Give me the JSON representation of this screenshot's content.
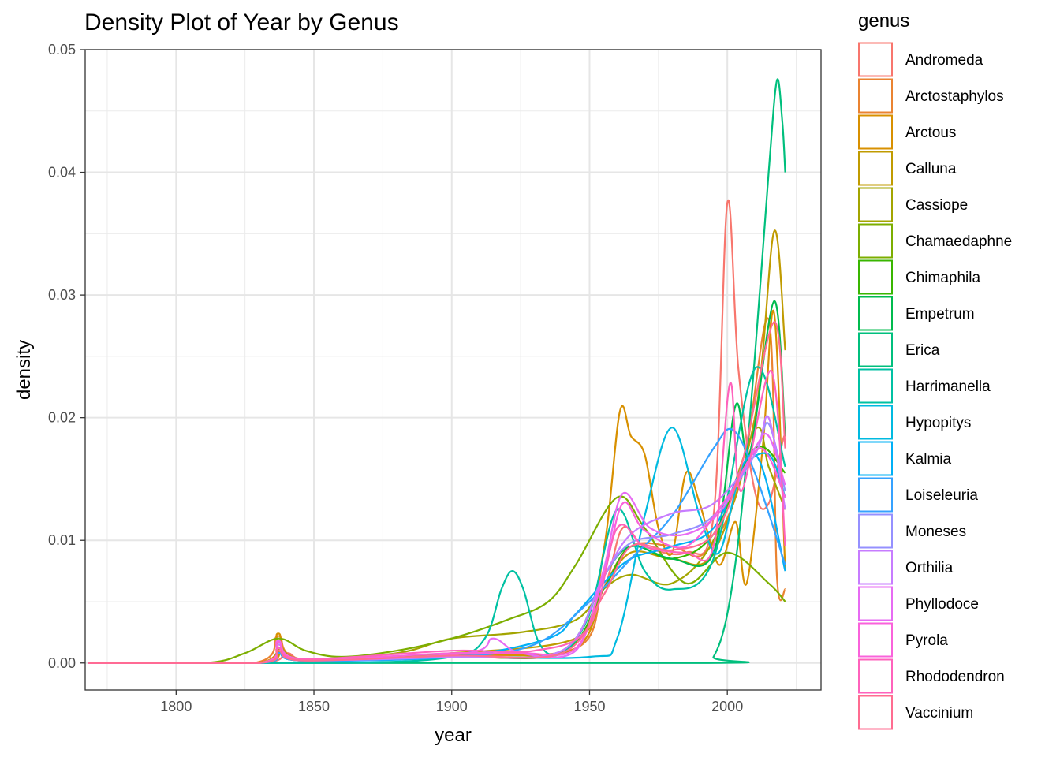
{
  "chart_data": {
    "type": "line",
    "title": "Density Plot of Year by Genus",
    "xlabel": "year",
    "ylabel": "density",
    "xlim": [
      1767,
      2034
    ],
    "ylim": [
      -0.0022,
      0.05
    ],
    "xticks": [
      1800,
      1850,
      1900,
      1950,
      2000
    ],
    "yticks": [
      0.0,
      0.01,
      0.02,
      0.03,
      0.04,
      0.05
    ],
    "ytick_labels": [
      "0.00",
      "0.01",
      "0.02",
      "0.03",
      "0.04",
      "0.05"
    ],
    "grid": true,
    "legend": {
      "title": "genus",
      "position": "right"
    },
    "series": [
      {
        "name": "Andromeda",
        "color": "#F8766D",
        "points": [
          [
            1768,
            0
          ],
          [
            1830,
            0
          ],
          [
            1840,
            0.0008
          ],
          [
            1850,
            0.0002
          ],
          [
            1900,
            0.0005
          ],
          [
            1940,
            0.0008
          ],
          [
            1955,
            0.006
          ],
          [
            1962,
            0.011
          ],
          [
            1970,
            0.0095
          ],
          [
            1985,
            0.009
          ],
          [
            1995,
            0.012
          ],
          [
            2000,
            0.0375
          ],
          [
            2004,
            0.024
          ],
          [
            2010,
            0.014
          ],
          [
            2015,
            0.013
          ],
          [
            2020,
            0.018
          ],
          [
            2021,
            0.0185
          ]
        ]
      },
      {
        "name": "Arctostaphylos",
        "color": "#EA8331",
        "points": [
          [
            1768,
            0
          ],
          [
            1828,
            0
          ],
          [
            1837,
            0.0022
          ],
          [
            1846,
            0.0003
          ],
          [
            1900,
            0.0006
          ],
          [
            1945,
            0.0012
          ],
          [
            1955,
            0.006
          ],
          [
            1965,
            0.0095
          ],
          [
            1980,
            0.0095
          ],
          [
            1992,
            0.009
          ],
          [
            2005,
            0.015
          ],
          [
            2015,
            0.028
          ],
          [
            2018,
            0.007
          ],
          [
            2021,
            0.006
          ]
        ]
      },
      {
        "name": "Arctous",
        "color": "#D89000",
        "points": [
          [
            1768,
            0
          ],
          [
            1830,
            0
          ],
          [
            1837,
            0.0024
          ],
          [
            1845,
            0.0003
          ],
          [
            1900,
            0.0008
          ],
          [
            1945,
            0.0012
          ],
          [
            1955,
            0.009
          ],
          [
            1961,
            0.0205
          ],
          [
            1965,
            0.0185
          ],
          [
            1970,
            0.017
          ],
          [
            1975,
            0.011
          ],
          [
            1980,
            0.009
          ],
          [
            1985,
            0.0155
          ],
          [
            1990,
            0.013
          ],
          [
            1997,
            0.008
          ],
          [
            2003,
            0.0115
          ],
          [
            2007,
            0.0065
          ],
          [
            2013,
            0.018
          ],
          [
            2017,
            0.0285
          ],
          [
            2021,
            0.0075
          ]
        ]
      },
      {
        "name": "Calluna",
        "color": "#C09B00",
        "points": [
          [
            1768,
            0
          ],
          [
            1830,
            0
          ],
          [
            1838,
            0.0012
          ],
          [
            1846,
            0.0003
          ],
          [
            1900,
            0.0008
          ],
          [
            1945,
            0.002
          ],
          [
            1955,
            0.006
          ],
          [
            1965,
            0.009
          ],
          [
            1980,
            0.0085
          ],
          [
            1995,
            0.009
          ],
          [
            2010,
            0.02
          ],
          [
            2017,
            0.0352
          ],
          [
            2021,
            0.0255
          ]
        ]
      },
      {
        "name": "Cassiope",
        "color": "#A3A500",
        "points": [
          [
            1768,
            0
          ],
          [
            1830,
            0
          ],
          [
            1837,
            0.0012
          ],
          [
            1846,
            0.0003
          ],
          [
            1880,
            0.0008
          ],
          [
            1900,
            0.002
          ],
          [
            1925,
            0.0025
          ],
          [
            1945,
            0.0035
          ],
          [
            1955,
            0.006
          ],
          [
            1965,
            0.0072
          ],
          [
            1980,
            0.0065
          ],
          [
            1995,
            0.01
          ],
          [
            2010,
            0.019
          ],
          [
            2015,
            0.016
          ],
          [
            2021,
            0.0125
          ]
        ]
      },
      {
        "name": "Chamaedaphne",
        "color": "#7CAE00",
        "points": [
          [
            1768,
            0
          ],
          [
            1810,
            0
          ],
          [
            1825,
            0.0008
          ],
          [
            1837,
            0.002
          ],
          [
            1847,
            0.001
          ],
          [
            1860,
            0.0005
          ],
          [
            1880,
            0.001
          ],
          [
            1900,
            0.002
          ],
          [
            1920,
            0.0035
          ],
          [
            1935,
            0.005
          ],
          [
            1945,
            0.008
          ],
          [
            1960,
            0.0135
          ],
          [
            1970,
            0.011
          ],
          [
            1985,
            0.0065
          ],
          [
            2000,
            0.009
          ],
          [
            2015,
            0.0065
          ],
          [
            2021,
            0.005
          ]
        ]
      },
      {
        "name": "Chimaphila",
        "color": "#39B600",
        "points": [
          [
            1768,
            0
          ],
          [
            1830,
            0
          ],
          [
            1837,
            0.0008
          ],
          [
            1846,
            0.0002
          ],
          [
            1900,
            0.0005
          ],
          [
            1940,
            0.0008
          ],
          [
            1955,
            0.006
          ],
          [
            1965,
            0.0095
          ],
          [
            1980,
            0.0085
          ],
          [
            1995,
            0.0105
          ],
          [
            2010,
            0.0175
          ],
          [
            2021,
            0.0155
          ]
        ]
      },
      {
        "name": "Empetrum",
        "color": "#00BB4E",
        "points": [
          [
            1768,
            0
          ],
          [
            1830,
            0
          ],
          [
            1837,
            0.0008
          ],
          [
            1846,
            0.0002
          ],
          [
            1900,
            0.0005
          ],
          [
            1940,
            0.001
          ],
          [
            1955,
            0.007
          ],
          [
            1965,
            0.0095
          ],
          [
            1980,
            0.0085
          ],
          [
            1995,
            0.009
          ],
          [
            2003,
            0.021
          ],
          [
            2008,
            0.017
          ],
          [
            2017,
            0.0295
          ],
          [
            2021,
            0.0185
          ]
        ]
      },
      {
        "name": "Erica",
        "color": "#00BF7D",
        "points": [
          [
            1768,
            0
          ],
          [
            1990,
            0
          ],
          [
            1995,
            0.0005
          ],
          [
            2000,
            0.004
          ],
          [
            2005,
            0.012
          ],
          [
            2010,
            0.025
          ],
          [
            2015,
            0.04
          ],
          [
            2018,
            0.0475
          ],
          [
            2020,
            0.044
          ],
          [
            2021,
            0.04
          ]
        ]
      },
      {
        "name": "Harrimanella",
        "color": "#00C1A3",
        "points": [
          [
            1768,
            0
          ],
          [
            1860,
            0
          ],
          [
            1900,
            0.0005
          ],
          [
            1912,
            0.002
          ],
          [
            1918,
            0.006
          ],
          [
            1922,
            0.0075
          ],
          [
            1926,
            0.006
          ],
          [
            1932,
            0.0015
          ],
          [
            1940,
            0.0008
          ],
          [
            1950,
            0.004
          ],
          [
            1960,
            0.0125
          ],
          [
            1970,
            0.0075
          ],
          [
            1980,
            0.006
          ],
          [
            1995,
            0.0085
          ],
          [
            2010,
            0.024
          ],
          [
            2021,
            0.016
          ]
        ]
      },
      {
        "name": "Hypopitys",
        "color": "#00BAE0",
        "points": [
          [
            1768,
            0
          ],
          [
            1830,
            0
          ],
          [
            1837,
            0.0008
          ],
          [
            1846,
            0.0002
          ],
          [
            1900,
            0.0005
          ],
          [
            1950,
            0.0005
          ],
          [
            1960,
            0.002
          ],
          [
            1970,
            0.012
          ],
          [
            1980,
            0.0192
          ],
          [
            1990,
            0.012
          ],
          [
            1997,
            0.009
          ],
          [
            2005,
            0.0155
          ],
          [
            2015,
            0.017
          ],
          [
            2021,
            0.0135
          ]
        ]
      },
      {
        "name": "Kalmia",
        "color": "#00B0F6",
        "points": [
          [
            1768,
            0
          ],
          [
            1830,
            0
          ],
          [
            1837,
            0.0008
          ],
          [
            1846,
            0.0002
          ],
          [
            1900,
            0.0005
          ],
          [
            1935,
            0.002
          ],
          [
            1945,
            0.004
          ],
          [
            1955,
            0.0065
          ],
          [
            1965,
            0.0085
          ],
          [
            1980,
            0.0095
          ],
          [
            1995,
            0.011
          ],
          [
            2010,
            0.017
          ],
          [
            2021,
            0.0075
          ]
        ]
      },
      {
        "name": "Loiseleuria",
        "color": "#35A2FF",
        "points": [
          [
            1768,
            0
          ],
          [
            1830,
            0
          ],
          [
            1837,
            0.0008
          ],
          [
            1846,
            0.0002
          ],
          [
            1900,
            0.0005
          ],
          [
            1930,
            0.0015
          ],
          [
            1950,
            0.005
          ],
          [
            1965,
            0.0085
          ],
          [
            1980,
            0.012
          ],
          [
            1995,
            0.0175
          ],
          [
            2002,
            0.019
          ],
          [
            2010,
            0.0155
          ],
          [
            2021,
            0.008
          ]
        ]
      },
      {
        "name": "Moneses",
        "color": "#9590FF",
        "points": [
          [
            1768,
            0
          ],
          [
            1830,
            0
          ],
          [
            1837,
            0.0015
          ],
          [
            1846,
            0.0003
          ],
          [
            1900,
            0.0005
          ],
          [
            1940,
            0.001
          ],
          [
            1955,
            0.007
          ],
          [
            1965,
            0.0098
          ],
          [
            1980,
            0.0105
          ],
          [
            1995,
            0.012
          ],
          [
            2010,
            0.017
          ],
          [
            2015,
            0.0195
          ],
          [
            2021,
            0.014
          ]
        ]
      },
      {
        "name": "Orthilia",
        "color": "#C77CFF",
        "points": [
          [
            1768,
            0
          ],
          [
            1830,
            0
          ],
          [
            1837,
            0.0015
          ],
          [
            1846,
            0.0003
          ],
          [
            1900,
            0.0005
          ],
          [
            1940,
            0.001
          ],
          [
            1955,
            0.007
          ],
          [
            1965,
            0.0105
          ],
          [
            1980,
            0.0122
          ],
          [
            1995,
            0.013
          ],
          [
            2010,
            0.017
          ],
          [
            2015,
            0.02
          ],
          [
            2021,
            0.0125
          ]
        ]
      },
      {
        "name": "Phyllodoce",
        "color": "#E76BF3",
        "points": [
          [
            1768,
            0
          ],
          [
            1830,
            0
          ],
          [
            1837,
            0.0018
          ],
          [
            1846,
            0.0003
          ],
          [
            1905,
            0.0008
          ],
          [
            1915,
            0.002
          ],
          [
            1925,
            0.0008
          ],
          [
            1945,
            0.001
          ],
          [
            1955,
            0.0075
          ],
          [
            1962,
            0.0138
          ],
          [
            1972,
            0.011
          ],
          [
            1985,
            0.0105
          ],
          [
            1998,
            0.0125
          ],
          [
            2010,
            0.0175
          ],
          [
            2015,
            0.0185
          ],
          [
            2021,
            0.0145
          ]
        ]
      },
      {
        "name": "Pyrola",
        "color": "#FA62DB",
        "points": [
          [
            1768,
            0
          ],
          [
            1830,
            0
          ],
          [
            1837,
            0.0017
          ],
          [
            1846,
            0.0003
          ],
          [
            1900,
            0.0008
          ],
          [
            1925,
            0.0008
          ],
          [
            1945,
            0.0012
          ],
          [
            1955,
            0.007
          ],
          [
            1962,
            0.013
          ],
          [
            1970,
            0.0108
          ],
          [
            1985,
            0.0095
          ],
          [
            2000,
            0.0135
          ],
          [
            2012,
            0.0175
          ],
          [
            2021,
            0.0135
          ]
        ]
      },
      {
        "name": "Rhododendron",
        "color": "#FF62BC",
        "points": [
          [
            1768,
            0
          ],
          [
            1830,
            0
          ],
          [
            1837,
            0.0012
          ],
          [
            1846,
            0.0003
          ],
          [
            1900,
            0.001
          ],
          [
            1930,
            0.001
          ],
          [
            1950,
            0.003
          ],
          [
            1960,
            0.011
          ],
          [
            1970,
            0.0095
          ],
          [
            1985,
            0.009
          ],
          [
            1995,
            0.0095
          ],
          [
            2001,
            0.0228
          ],
          [
            2005,
            0.014
          ],
          [
            2016,
            0.0238
          ],
          [
            2021,
            0.0095
          ]
        ]
      },
      {
        "name": "Vaccinium",
        "color": "#FF6C91",
        "points": [
          [
            1768,
            0
          ],
          [
            1830,
            0
          ],
          [
            1837,
            0.001
          ],
          [
            1846,
            0.0002
          ],
          [
            1900,
            0.0006
          ],
          [
            1940,
            0.0008
          ],
          [
            1955,
            0.0055
          ],
          [
            1965,
            0.0095
          ],
          [
            1980,
            0.0092
          ],
          [
            1995,
            0.0105
          ],
          [
            2005,
            0.016
          ],
          [
            2017,
            0.0278
          ],
          [
            2021,
            0.0175
          ]
        ]
      }
    ]
  }
}
